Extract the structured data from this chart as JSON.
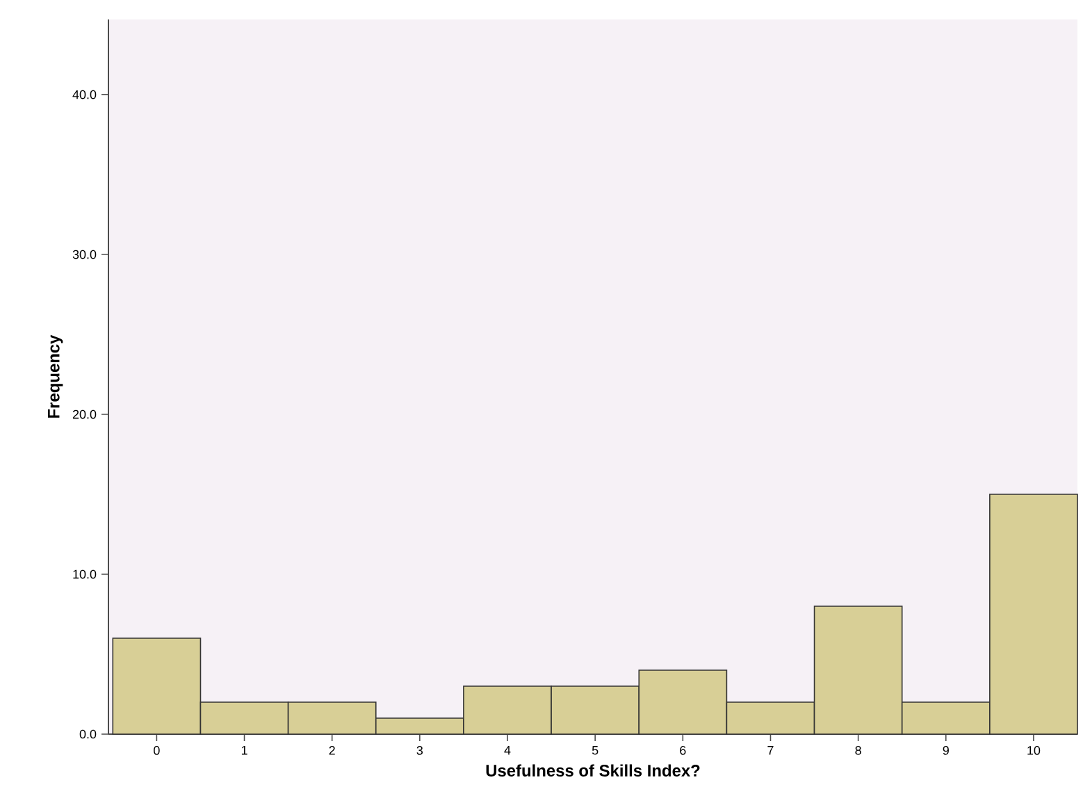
{
  "chart_data": {
    "type": "bar",
    "xlabel": "Usefulness of Skills Index?",
    "ylabel": "Frequency",
    "categories": [
      "0",
      "1",
      "2",
      "3",
      "4",
      "5",
      "6",
      "7",
      "8",
      "9",
      "10"
    ],
    "values": [
      6,
      2,
      2,
      1,
      3,
      3,
      4,
      2,
      8,
      2,
      15
    ],
    "color": "#d8cf96",
    "ylim": [
      0,
      44.7
    ],
    "yticks": [
      {
        "value": 0,
        "label": "0.0"
      },
      {
        "value": 10,
        "label": "10.0"
      },
      {
        "value": 20,
        "label": "20.0"
      },
      {
        "value": 30,
        "label": "30.0"
      },
      {
        "value": 40,
        "label": "40.0"
      }
    ],
    "grid": false
  }
}
